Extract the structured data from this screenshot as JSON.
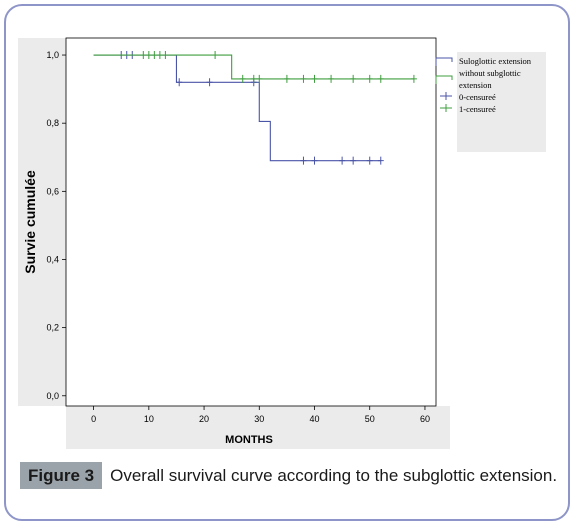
{
  "figure": {
    "label": "Figure 3",
    "caption": "Overall survival curve according to the subglottic extension."
  },
  "colors": {
    "frame_border": "#8e95c8",
    "panel_bg": "#ebebeb",
    "series_blue": "#4b55a8",
    "series_green": "#3f9e3f"
  },
  "chart_data": {
    "type": "line",
    "subtype": "kaplan-meier-step",
    "xlabel": "MONTHS",
    "ylabel": "Survie cumulée",
    "xlim": [
      -5,
      62
    ],
    "ylim": [
      -0.03,
      1.05
    ],
    "x_ticks": [
      "0",
      "10",
      "20",
      "30",
      "40",
      "50",
      "60"
    ],
    "y_ticks": [
      "0,0",
      "0,2",
      "0,4",
      "0,6",
      "0,8",
      "1,0"
    ],
    "legend_placement": "right",
    "legend": [
      {
        "label": "Suloglottic extension",
        "symbol": "step-blue"
      },
      {
        "label": "without subglottic extension",
        "symbol": "step-green"
      },
      {
        "label": "0-censureé",
        "symbol": "plus-blue"
      },
      {
        "label": "1-censureé",
        "symbol": "plus-green"
      }
    ],
    "series": [
      {
        "color": "#4b55a8",
        "steps": [
          [
            0,
            1.0
          ],
          [
            15,
            0.92
          ],
          [
            30,
            0.805
          ],
          [
            32,
            0.69
          ],
          [
            52,
            0.69
          ]
        ],
        "censored": [
          [
            5,
            1.0
          ],
          [
            6,
            1.0
          ],
          [
            7,
            1.0
          ],
          [
            15.5,
            0.92
          ],
          [
            21,
            0.92
          ],
          [
            29,
            0.92
          ],
          [
            38,
            0.69
          ],
          [
            40,
            0.69
          ],
          [
            45,
            0.69
          ],
          [
            47,
            0.69
          ],
          [
            50,
            0.69
          ],
          [
            52,
            0.69
          ]
        ]
      },
      {
        "color": "#3f9e3f",
        "steps": [
          [
            0,
            1.0
          ],
          [
            25,
            0.93
          ],
          [
            58,
            0.93
          ]
        ],
        "censored": [
          [
            9,
            1.0
          ],
          [
            10,
            1.0
          ],
          [
            11,
            1.0
          ],
          [
            12,
            1.0
          ],
          [
            13,
            1.0
          ],
          [
            22,
            1.0
          ],
          [
            27,
            0.93
          ],
          [
            29,
            0.93
          ],
          [
            30,
            0.93
          ],
          [
            35,
            0.93
          ],
          [
            38,
            0.93
          ],
          [
            40,
            0.93
          ],
          [
            43,
            0.93
          ],
          [
            47,
            0.93
          ],
          [
            50,
            0.93
          ],
          [
            52,
            0.93
          ],
          [
            58,
            0.93
          ]
        ]
      }
    ]
  }
}
